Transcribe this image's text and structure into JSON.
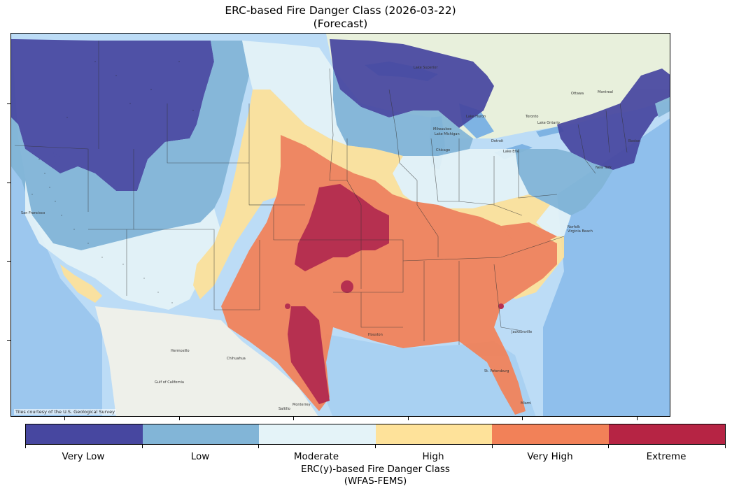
{
  "title_line1": "ERC-based Fire Danger Class (2026-03-22)",
  "title_line2": "(Forecast)",
  "attribution": "Tiles courtesy of the U.S. Geological Survey",
  "colorbar": {
    "title_line1": "ERC(y)-based Fire Danger Class",
    "title_line2": "(WFAS-FEMS)",
    "classes": [
      {
        "label": "Very Low",
        "color": "#4747a0"
      },
      {
        "label": "Low",
        "color": "#82b5d7"
      },
      {
        "label": "Moderate",
        "color": "#e4f3f8"
      },
      {
        "label": "High",
        "color": "#fee29a"
      },
      {
        "label": "Very High",
        "color": "#f28158"
      },
      {
        "label": "Extreme",
        "color": "#b62444"
      }
    ]
  },
  "map_labels": {
    "san_francisco": "San Francisco",
    "chihuahua": "Chihuahua",
    "hermosillo": "Hermosillo",
    "monterrey": "Monterrey",
    "saltillo": "Saltillo",
    "gulf_of_california": "Gulf of California",
    "houston": "Houston",
    "jacksonville": "Jacksonville",
    "miami": "Miami",
    "st_petersburg": "St. Petersburg",
    "lake_superior": "Lake Superior",
    "lake_michigan": "Lake Michigan",
    "lake_huron": "Lake Huron",
    "lake_erie": "Lake Erie",
    "lake_ontario": "Lake Ontario",
    "milwaukee": "Milwaukee",
    "chicago": "Chicago",
    "detroit": "Detroit",
    "toronto": "Toronto",
    "montreal": "Montreal",
    "ottawa": "Ottawa",
    "boston": "Boston",
    "new_york": "New York",
    "norfolk": "Norfolk",
    "virginia_beach": "Virginia Beach"
  }
}
